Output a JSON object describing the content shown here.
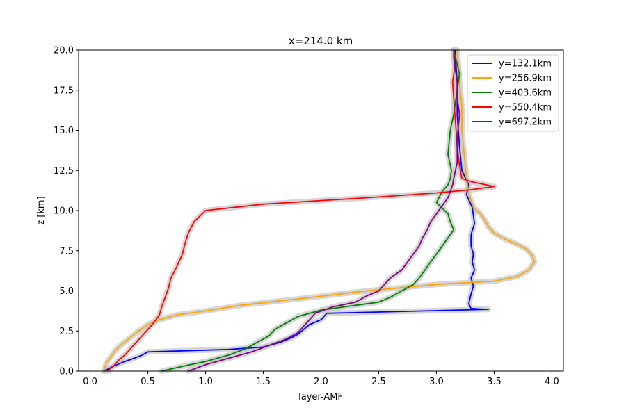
{
  "chart_data": {
    "type": "line",
    "title": "x=214.0 km",
    "xlabel": "layer-AMF",
    "ylabel": "z [km]",
    "xlim": [
      -0.1,
      4.1
    ],
    "ylim": [
      0,
      20
    ],
    "xticks": [
      0.0,
      0.5,
      1.0,
      1.5,
      2.0,
      2.5,
      3.0,
      3.5,
      4.0
    ],
    "xtick_labels": [
      "0.0",
      "0.5",
      "1.0",
      "1.5",
      "2.0",
      "2.5",
      "3.0",
      "3.5",
      "4.0"
    ],
    "yticks": [
      0.0,
      2.5,
      5.0,
      7.5,
      10.0,
      12.5,
      15.0,
      17.5,
      20.0
    ],
    "ytick_labels": [
      "0.0",
      "2.5",
      "5.0",
      "7.5",
      "10.0",
      "12.5",
      "15.0",
      "17.5",
      "20.0"
    ],
    "grid": false,
    "legend_position": "top-right",
    "uncertainty_band_color": "#c8c8c8",
    "series": [
      {
        "name": "y=132.1km",
        "color": "#0000ff",
        "x": [
          0.12,
          0.2,
          0.3,
          0.38,
          0.45,
          0.5,
          1.2,
          1.5,
          1.65,
          1.75,
          1.8,
          1.85,
          1.9,
          2.0,
          2.05,
          3.45,
          3.3,
          3.28,
          3.3,
          3.32,
          3.3,
          3.33,
          3.31,
          3.32,
          3.3,
          3.3,
          3.33,
          3.32,
          3.31,
          3.26,
          3.28,
          3.22,
          3.2,
          3.18,
          3.18,
          3.16
        ],
        "y": [
          0.0,
          0.3,
          0.6,
          0.8,
          1.0,
          1.2,
          1.35,
          1.5,
          1.8,
          2.1,
          2.3,
          2.6,
          2.9,
          3.2,
          3.6,
          3.85,
          3.9,
          4.2,
          4.8,
          5.3,
          5.8,
          6.3,
          6.8,
          7.3,
          7.8,
          8.5,
          9.2,
          9.7,
          10.2,
          11.0,
          11.6,
          12.5,
          14.0,
          16.0,
          18.0,
          20.0
        ]
      },
      {
        "name": "y=256.9km",
        "color": "#ffa500",
        "x": [
          0.12,
          0.14,
          0.18,
          0.22,
          0.28,
          0.35,
          0.42,
          0.5,
          0.6,
          0.75,
          1.0,
          1.3,
          1.8,
          2.4,
          3.0,
          3.5,
          3.7,
          3.8,
          3.85,
          3.83,
          3.78,
          3.7,
          3.6,
          3.5,
          3.45,
          3.42,
          3.38,
          3.32,
          3.3,
          3.28,
          3.26,
          3.24,
          3.22,
          3.22,
          3.2,
          3.18
        ],
        "y": [
          0.0,
          0.5,
          0.9,
          1.3,
          1.7,
          2.1,
          2.5,
          2.9,
          3.2,
          3.5,
          3.75,
          4.1,
          4.5,
          5.0,
          5.4,
          5.6,
          5.9,
          6.3,
          6.8,
          7.2,
          7.6,
          7.9,
          8.2,
          8.6,
          9.0,
          9.4,
          9.8,
          10.2,
          10.6,
          11.1,
          12.0,
          13.5,
          15.0,
          16.5,
          18.0,
          20.0
        ]
      },
      {
        "name": "y=403.6km",
        "color": "#008000",
        "x": [
          0.62,
          0.8,
          1.0,
          1.2,
          1.35,
          1.45,
          1.55,
          1.6,
          1.7,
          1.8,
          2.0,
          2.3,
          2.5,
          2.6,
          2.7,
          2.8,
          2.85,
          2.9,
          2.95,
          3.0,
          3.05,
          3.1,
          3.15,
          3.12,
          3.1,
          3.0,
          3.05,
          3.1,
          3.12,
          3.13,
          3.1,
          3.12,
          3.15,
          3.18,
          3.2,
          3.15
        ],
        "y": [
          0.0,
          0.3,
          0.6,
          1.0,
          1.4,
          1.8,
          2.2,
          2.6,
          3.0,
          3.4,
          3.8,
          4.1,
          4.3,
          4.6,
          5.0,
          5.4,
          5.8,
          6.3,
          6.8,
          7.3,
          7.8,
          8.3,
          8.8,
          9.3,
          9.8,
          10.5,
          11.2,
          11.6,
          12.0,
          12.5,
          13.5,
          15.0,
          16.0,
          17.5,
          18.5,
          20.0
        ]
      },
      {
        "name": "y=550.4km",
        "color": "#ff0000",
        "x": [
          0.15,
          0.2,
          0.25,
          0.3,
          0.35,
          0.4,
          0.45,
          0.5,
          0.55,
          0.6,
          0.62,
          0.65,
          0.68,
          0.7,
          0.75,
          0.8,
          0.82,
          0.85,
          0.9,
          1.0,
          1.5,
          2.4,
          3.0,
          3.3,
          3.5,
          3.3,
          3.22,
          3.2,
          3.18,
          3.17,
          3.16,
          3.15,
          3.14,
          3.16,
          3.15,
          3.15
        ],
        "y": [
          0.0,
          0.3,
          0.7,
          1.0,
          1.4,
          1.8,
          2.2,
          2.6,
          3.0,
          3.5,
          4.0,
          4.6,
          5.2,
          5.8,
          6.5,
          7.3,
          7.9,
          8.6,
          9.3,
          10.0,
          10.4,
          10.8,
          11.1,
          11.3,
          11.5,
          11.8,
          12.0,
          12.8,
          14.0,
          15.0,
          16.0,
          17.0,
          18.0,
          19.0,
          19.5,
          20.0
        ]
      },
      {
        "name": "y=697.2km",
        "color": "#800080",
        "x": [
          0.85,
          1.0,
          1.2,
          1.4,
          1.55,
          1.7,
          1.8,
          1.85,
          1.9,
          1.95,
          2.1,
          2.3,
          2.4,
          2.5,
          2.55,
          2.6,
          2.7,
          2.75,
          2.8,
          2.85,
          2.88,
          2.92,
          2.95,
          3.0,
          3.05,
          3.1,
          3.12,
          3.14,
          3.15,
          3.18,
          3.18,
          3.2,
          3.18,
          3.18,
          3.16,
          3.15
        ],
        "y": [
          0.0,
          0.4,
          0.8,
          1.2,
          1.6,
          2.0,
          2.4,
          2.8,
          3.2,
          3.6,
          4.0,
          4.3,
          4.7,
          5.0,
          5.4,
          5.8,
          6.3,
          6.8,
          7.3,
          7.8,
          8.3,
          8.8,
          9.3,
          9.8,
          10.3,
          10.8,
          11.2,
          11.6,
          12.0,
          13.0,
          14.5,
          16.0,
          17.0,
          18.0,
          19.0,
          20.0
        ]
      }
    ]
  }
}
